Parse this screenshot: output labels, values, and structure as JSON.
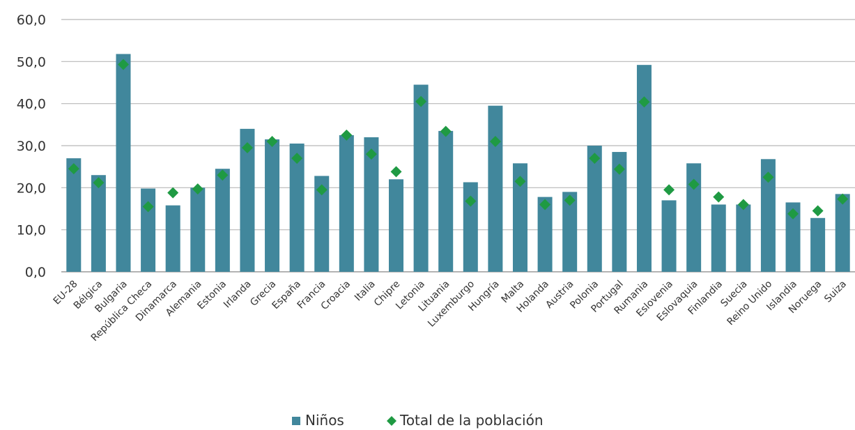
{
  "chart_data": {
    "type": "bar",
    "categories": [
      "EU-28",
      "Bélgica",
      "Bulgaria",
      "República Checa",
      "Dinamarca",
      "Alemania",
      "Estonia",
      "Irlanda",
      "Grecia",
      "España",
      "Francia",
      "Croacia",
      "Italia",
      "Chipre",
      "Letonia",
      "Lituania",
      "Luxemburgo",
      "Hungría",
      "Malta",
      "Holanda",
      "Austria",
      "Polonia",
      "Portugal",
      "Rumania",
      "Eslovenia",
      "Eslovaquia",
      "Finlandia",
      "Suecia",
      "Reino Unido",
      "Islandia",
      "Noruega",
      "Suiza"
    ],
    "series": [
      {
        "name": "Niños",
        "type": "bar",
        "color": "#41879c",
        "values": [
          27.0,
          23.0,
          51.8,
          19.8,
          15.8,
          20.0,
          24.5,
          34.0,
          31.5,
          30.5,
          22.8,
          32.5,
          32.0,
          22.0,
          44.5,
          33.5,
          21.3,
          39.5,
          25.8,
          17.8,
          19.0,
          30.0,
          28.5,
          49.2,
          17.0,
          25.8,
          16.0,
          16.0,
          26.8,
          16.5,
          12.8,
          18.5
        ]
      },
      {
        "name": "Total de la población",
        "type": "marker",
        "color": "#1f9a43",
        "values": [
          24.5,
          21.2,
          49.3,
          15.5,
          18.8,
          19.7,
          23.0,
          29.5,
          31.0,
          27.0,
          19.5,
          32.5,
          28.0,
          23.8,
          40.5,
          33.4,
          16.8,
          31.0,
          21.5,
          16.0,
          17.0,
          27.0,
          24.4,
          40.4,
          19.5,
          20.8,
          17.8,
          16.0,
          22.5,
          13.8,
          14.5,
          17.3
        ]
      }
    ],
    "y_ticks": [
      "0,0",
      "10,0",
      "20,0",
      "30,0",
      "40,0",
      "50,0",
      "60,0"
    ],
    "ylim": [
      0,
      60
    ],
    "grid": true,
    "legend_position": "bottom"
  }
}
